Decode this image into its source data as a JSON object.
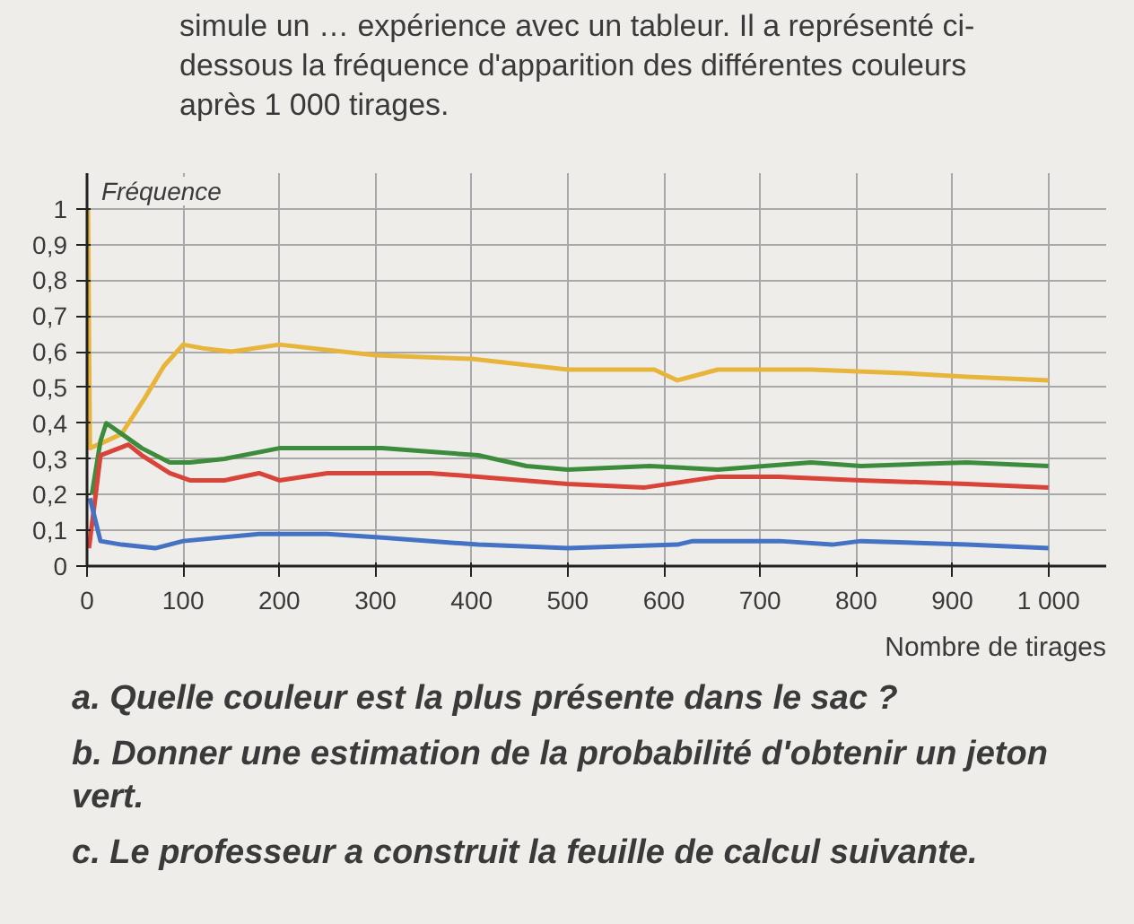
{
  "chart_data": {
    "type": "line",
    "ylabel": "Fréquence",
    "xlabel": "Nombre de tirages",
    "annotations": [
      "simule un … expérience avec un tableur. Il a représenté ci-dessous la fréquence d'apparition des différentes couleurs après 1 000 tirages.",
      "a. Quelle couleur est la plus présente dans le sac ?",
      "b. Donner une estimation de la probabilité d'obtenir un jeton vert.",
      "c. Le professeur a construit la feuille de calcul suivante."
    ],
    "xlim": [
      0,
      1060
    ],
    "ylim": [
      0,
      1.1
    ],
    "xticks": [
      0,
      100,
      200,
      300,
      400,
      500,
      600,
      700,
      800,
      900,
      {
        "value": 1000,
        "label": "1 000"
      }
    ],
    "yticks": [
      0,
      {
        "value": 0.1,
        "label": "0,1"
      },
      {
        "value": 0.2,
        "label": "0,2"
      },
      {
        "value": 0.3,
        "label": "0,3"
      },
      {
        "value": 0.4,
        "label": "0,4"
      },
      {
        "value": 0.5,
        "label": "0,5"
      },
      {
        "value": 0.6,
        "label": "0,6"
      },
      {
        "value": 0.7,
        "label": "0,7"
      },
      {
        "value": 0.8,
        "label": "0,8"
      },
      {
        "value": 0.9,
        "label": "0,9"
      },
      1
    ],
    "grid": true,
    "line_style": "solid",
    "series": [
      {
        "color": "#e8b53c",
        "x": [
          1,
          3,
          20,
          36,
          60,
          80,
          100,
          120,
          150,
          200,
          300,
          400,
          500,
          590,
          614,
          656,
          753,
          850,
          915,
          1000
        ],
        "values": [
          1.0,
          0.33,
          0.35,
          0.37,
          0.47,
          0.56,
          0.62,
          0.61,
          0.6,
          0.62,
          0.59,
          0.58,
          0.55,
          0.55,
          0.52,
          0.55,
          0.55,
          0.54,
          0.53,
          0.52
        ]
      },
      {
        "color": "#3d8c3d",
        "x": [
          5,
          14,
          20,
          36,
          57,
          86,
          107,
          143,
          200,
          307,
          407,
          457,
          500,
          585,
          656,
          753,
          805,
          915,
          1000
        ],
        "values": [
          0.2,
          0.35,
          0.4,
          0.37,
          0.33,
          0.29,
          0.29,
          0.3,
          0.33,
          0.33,
          0.31,
          0.28,
          0.27,
          0.28,
          0.27,
          0.29,
          0.28,
          0.29,
          0.28
        ]
      },
      {
        "color": "#d9443a",
        "x": [
          2,
          9,
          14,
          43,
          57,
          86,
          107,
          143,
          179,
          200,
          250,
          307,
          357,
          407,
          500,
          580,
          656,
          720,
          805,
          915,
          1000
        ],
        "values": [
          0.05,
          0.2,
          0.31,
          0.34,
          0.31,
          0.26,
          0.24,
          0.24,
          0.26,
          0.24,
          0.26,
          0.26,
          0.26,
          0.25,
          0.23,
          0.22,
          0.25,
          0.25,
          0.24,
          0.23,
          0.22
        ]
      },
      {
        "color": "#4472c4",
        "x": [
          3,
          14,
          36,
          71,
          100,
          179,
          250,
          307,
          407,
          500,
          614,
          630,
          720,
          775,
          805,
          915,
          1000
        ],
        "values": [
          0.19,
          0.07,
          0.06,
          0.05,
          0.07,
          0.09,
          0.09,
          0.08,
          0.06,
          0.05,
          0.06,
          0.07,
          0.07,
          0.06,
          0.07,
          0.06,
          0.05
        ]
      }
    ]
  }
}
